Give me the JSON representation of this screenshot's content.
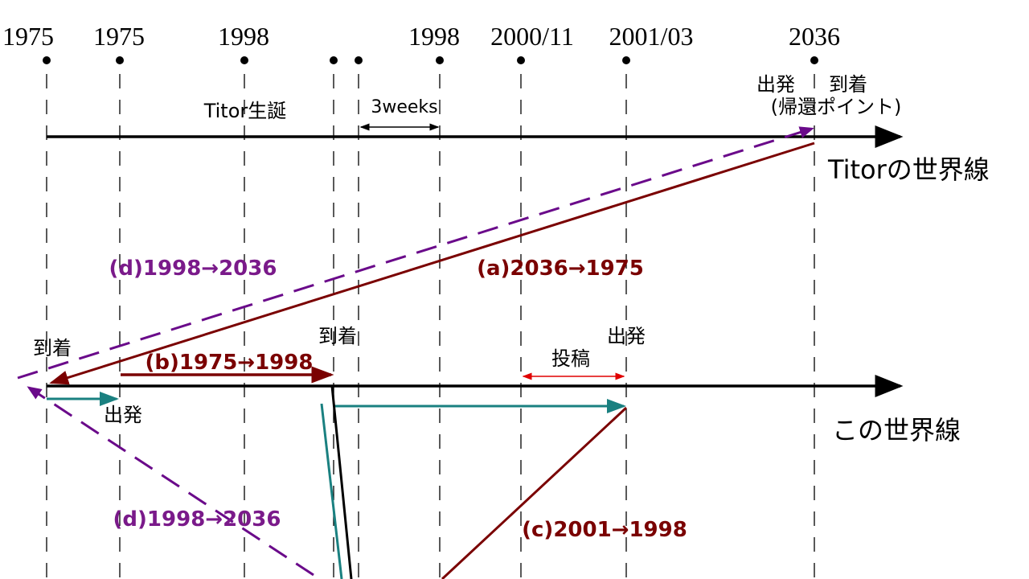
{
  "timeline": {
    "ticks": [
      "1975",
      "1975",
      "1998",
      "1998",
      "2000/11",
      "2001/03",
      "2036"
    ]
  },
  "titor_line": {
    "birth": "Titor生誕",
    "duration": "3weeks",
    "depart": "出発",
    "arrive": "到着",
    "return_point": "(帰還ポイント)",
    "name": "Titorの世界線"
  },
  "this_line": {
    "arrive_1975": "到着",
    "arrive_1998": "到着",
    "depart_2001": "出発",
    "post": "投稿",
    "depart_1975": "出発",
    "name": "この世界線"
  },
  "trips": {
    "a": "(a)2036→1975",
    "b": "(b)1975→1998",
    "c": "(c)2001→1998",
    "d_upper": "(d)1998→2036",
    "d_lower": "(d)1998→2036"
  }
}
